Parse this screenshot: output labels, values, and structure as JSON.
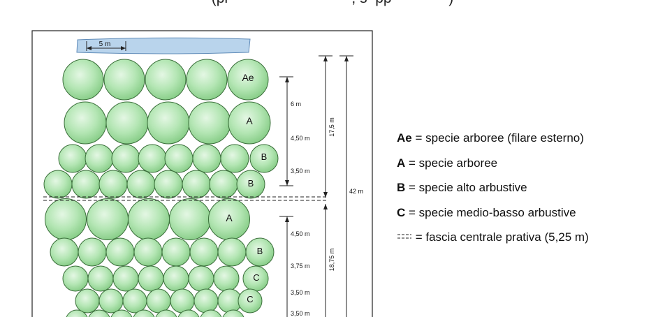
{
  "caption": "(pr                              , s  pp              )",
  "plan": {
    "scale_bar_label": "5 m",
    "row_labels": [
      "Ae",
      "A",
      "B",
      "B",
      "A",
      "B",
      "C",
      "C"
    ],
    "spacing_labels": [
      "6 m",
      "4,50 m",
      "3,50 m",
      "4,50 m",
      "3,75 m",
      "3,50 m",
      "3,50 m"
    ],
    "dimension_labels": [
      "17,5 m",
      "42 m",
      "18,75 m"
    ]
  },
  "legend": {
    "items": [
      {
        "code": "Ae",
        "text": " = specie arboree (filare esterno)"
      },
      {
        "code": "A",
        "text": " = specie arboree"
      },
      {
        "code": "B",
        "text": " = specie alto arbustive"
      },
      {
        "code": "C",
        "text": " = specie medio-basso arbustive"
      },
      {
        "code": "",
        "text": " = fascia centrale prativa (5,25 m)"
      }
    ]
  },
  "colors": {
    "tree_fill": "#a6e0a6",
    "tree_stroke": "#3a6e3a",
    "water_fill": "#b9d4ec",
    "water_stroke": "#5f8bb8",
    "line": "#222222"
  }
}
